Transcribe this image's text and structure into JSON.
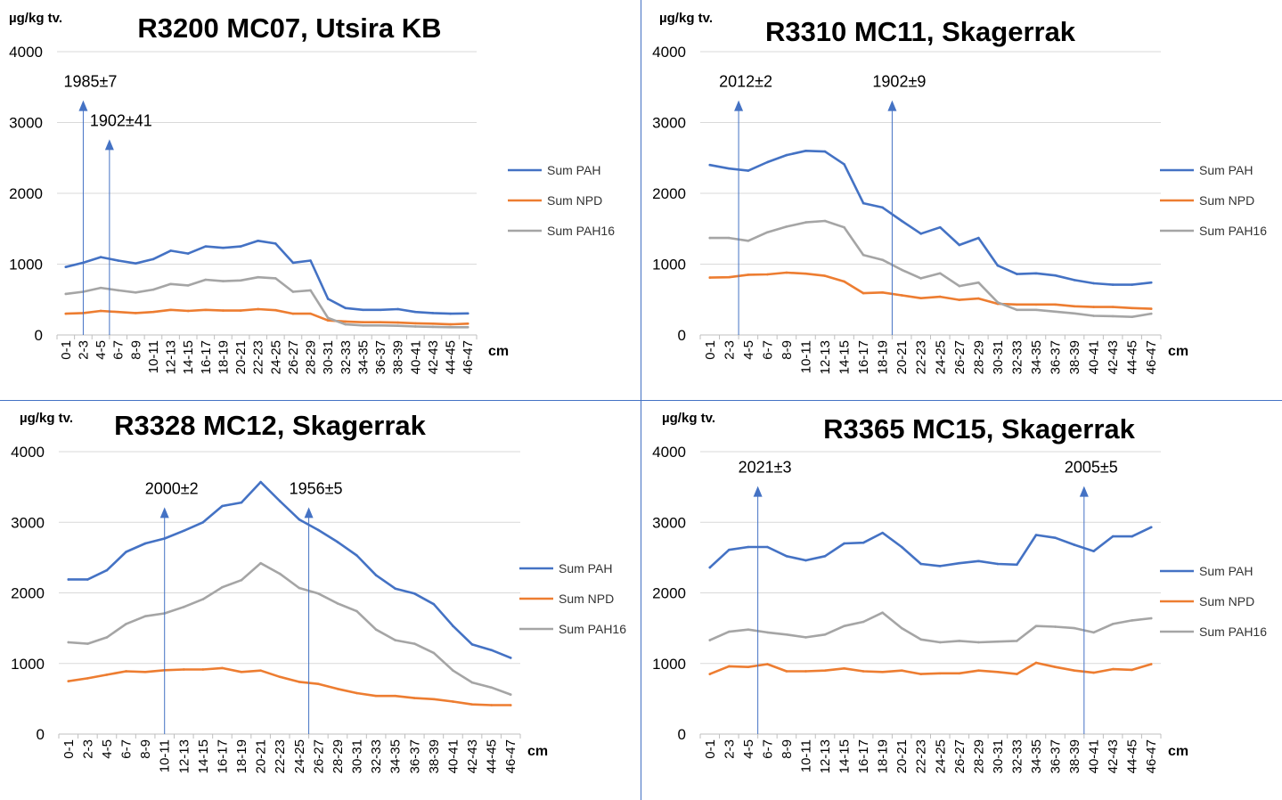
{
  "colors": {
    "pah": "#4472C4",
    "npd": "#ED7D31",
    "pah16": "#A5A5A5",
    "divider": "#4472C4",
    "grid": "#D9D9D9"
  },
  "chart_data": [
    {
      "type": "line",
      "title": "R3200 MC07, Utsira KB",
      "ylabel": "µg/kg tv.",
      "xlabel": "cm",
      "ylim": [
        0,
        4000
      ],
      "yticks": [
        "0",
        "1000",
        "2000",
        "3000",
        "4000"
      ],
      "categories": [
        "0-1",
        "2-3",
        "4-5",
        "6-7",
        "8-9",
        "10-11",
        "12-13",
        "14-15",
        "16-17",
        "18-19",
        "20-21",
        "22-23",
        "24-25",
        "26-27",
        "28-29",
        "30-31",
        "32-33",
        "34-35",
        "36-37",
        "38-39",
        "40-41",
        "42-43",
        "44-45",
        "46-47"
      ],
      "series": [
        {
          "name": "Sum PAH",
          "values": [
            960,
            1020,
            1100,
            1050,
            1010,
            1070,
            1190,
            1150,
            1250,
            1230,
            1250,
            1330,
            1290,
            1020,
            1050,
            510,
            380,
            355,
            355,
            365,
            325,
            310,
            300,
            305
          ]
        },
        {
          "name": "Sum NPD",
          "values": [
            300,
            310,
            340,
            325,
            310,
            325,
            355,
            340,
            355,
            345,
            345,
            365,
            350,
            300,
            300,
            205,
            190,
            180,
            180,
            175,
            165,
            160,
            150,
            160
          ]
        },
        {
          "name": "Sum PAH16",
          "values": [
            580,
            610,
            665,
            630,
            600,
            640,
            720,
            700,
            780,
            760,
            770,
            815,
            800,
            610,
            630,
            240,
            150,
            135,
            135,
            130,
            120,
            115,
            110,
            110
          ]
        }
      ],
      "annotations": [
        {
          "label": "1985±7",
          "at": 1.5,
          "y": 3300
        },
        {
          "label": "1902±41",
          "at": 3.0,
          "y": 2750
        }
      ]
    },
    {
      "type": "line",
      "title": "R3310 MC11, Skagerrak",
      "ylabel": "µg/kg tv.",
      "xlabel": "cm",
      "ylim": [
        0,
        4000
      ],
      "yticks": [
        "0",
        "1000",
        "2000",
        "3000",
        "4000"
      ],
      "categories": [
        "0-1",
        "2-3",
        "4-5",
        "6-7",
        "8-9",
        "10-11",
        "12-13",
        "14-15",
        "16-17",
        "18-19",
        "20-21",
        "22-23",
        "24-25",
        "26-27",
        "28-29",
        "30-31",
        "32-33",
        "34-35",
        "36-37",
        "38-39",
        "40-41",
        "42-43",
        "44-45",
        "46-47"
      ],
      "series": [
        {
          "name": "Sum PAH",
          "values": [
            2400,
            2350,
            2320,
            2440,
            2540,
            2600,
            2590,
            2410,
            1860,
            1800,
            1610,
            1430,
            1520,
            1270,
            1370,
            980,
            860,
            870,
            840,
            775,
            730,
            710,
            710,
            740
          ]
        },
        {
          "name": "Sum NPD",
          "values": [
            810,
            815,
            850,
            855,
            880,
            865,
            835,
            755,
            590,
            600,
            560,
            520,
            540,
            495,
            515,
            440,
            430,
            430,
            430,
            405,
            395,
            395,
            380,
            370
          ]
        },
        {
          "name": "Sum PAH16",
          "values": [
            1370,
            1370,
            1330,
            1450,
            1530,
            1590,
            1610,
            1520,
            1130,
            1060,
            920,
            800,
            870,
            690,
            740,
            460,
            355,
            355,
            330,
            305,
            270,
            265,
            255,
            300
          ]
        }
      ],
      "annotations": [
        {
          "label": "2012±2",
          "at": 2.0,
          "y": 3300
        },
        {
          "label": "1902±9",
          "at": 10.0,
          "y": 3300
        }
      ]
    },
    {
      "type": "line",
      "title": "R3328 MC12, Skagerrak",
      "ylabel": "µg/kg tv.",
      "xlabel": "cm",
      "ylim": [
        0,
        4000
      ],
      "yticks": [
        "0",
        "1000",
        "2000",
        "3000",
        "4000"
      ],
      "categories": [
        "0-1",
        "2-3",
        "4-5",
        "6-7",
        "8-9",
        "10-11",
        "12-13",
        "14-15",
        "16-17",
        "18-19",
        "20-21",
        "22-23",
        "24-25",
        "26-27",
        "28-29",
        "30-31",
        "32-33",
        "34-35",
        "36-37",
        "38-39",
        "40-41",
        "42-43",
        "44-45",
        "46-47"
      ],
      "series": [
        {
          "name": "Sum PAH",
          "values": [
            2190,
            2190,
            2320,
            2580,
            2700,
            2770,
            2880,
            3000,
            3230,
            3280,
            3570,
            3300,
            3040,
            2890,
            2720,
            2530,
            2250,
            2060,
            1990,
            1840,
            1530,
            1270,
            1190,
            1080
          ]
        },
        {
          "name": "Sum NPD",
          "values": [
            750,
            790,
            840,
            890,
            880,
            905,
            915,
            915,
            935,
            880,
            900,
            810,
            740,
            710,
            640,
            580,
            540,
            540,
            510,
            495,
            460,
            420,
            410,
            410
          ]
        },
        {
          "name": "Sum PAH16",
          "values": [
            1300,
            1280,
            1370,
            1560,
            1670,
            1710,
            1800,
            1910,
            2080,
            2180,
            2420,
            2270,
            2070,
            1990,
            1850,
            1740,
            1480,
            1330,
            1280,
            1150,
            900,
            730,
            660,
            560
          ]
        }
      ],
      "annotations": [
        {
          "label": "2000±2",
          "at": 5.5,
          "y": 3200
        },
        {
          "label": "1956±5",
          "at": 13.0,
          "y": 3200
        }
      ]
    },
    {
      "type": "line",
      "title": "R3365 MC15, Skagerrak",
      "ylabel": "µg/kg tv.",
      "xlabel": "cm",
      "ylim": [
        0,
        4000
      ],
      "yticks": [
        "0",
        "1000",
        "2000",
        "3000",
        "4000"
      ],
      "categories": [
        "0-1",
        "2-3",
        "4-5",
        "6-7",
        "8-9",
        "10-11",
        "12-13",
        "14-15",
        "16-17",
        "18-19",
        "20-21",
        "22-23",
        "24-25",
        "26-27",
        "28-29",
        "30-31",
        "32-33",
        "34-35",
        "36-37",
        "38-39",
        "40-41",
        "42-43",
        "44-45",
        "46-47"
      ],
      "series": [
        {
          "name": "Sum PAH",
          "values": [
            2360,
            2610,
            2650,
            2650,
            2520,
            2460,
            2520,
            2700,
            2710,
            2850,
            2650,
            2410,
            2380,
            2420,
            2450,
            2410,
            2400,
            2820,
            2780,
            2680,
            2590,
            2800,
            2800,
            2930
          ]
        },
        {
          "name": "Sum NPD",
          "values": [
            850,
            960,
            950,
            990,
            890,
            890,
            900,
            930,
            890,
            880,
            900,
            850,
            860,
            860,
            900,
            880,
            850,
            1010,
            950,
            900,
            870,
            920,
            910,
            990
          ]
        },
        {
          "name": "Sum PAH16",
          "values": [
            1330,
            1450,
            1480,
            1440,
            1410,
            1370,
            1410,
            1530,
            1590,
            1720,
            1500,
            1340,
            1300,
            1320,
            1300,
            1310,
            1320,
            1530,
            1520,
            1500,
            1440,
            1560,
            1610,
            1640
          ]
        }
      ],
      "annotations": [
        {
          "label": "2021±3",
          "at": 3.0,
          "y": 3500
        },
        {
          "label": "2005±5",
          "at": 20.0,
          "y": 3500
        }
      ]
    }
  ]
}
